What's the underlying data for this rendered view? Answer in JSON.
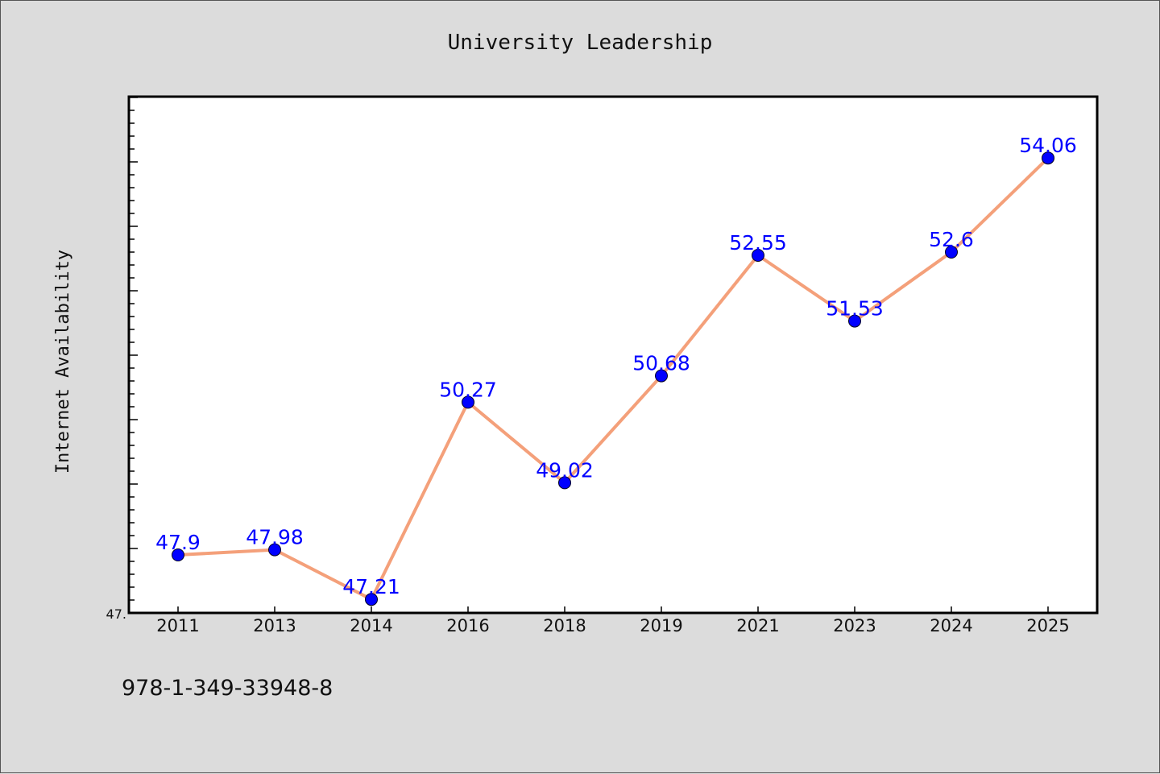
{
  "chart_data": {
    "type": "line",
    "title": "University Leadership",
    "xlabel": "",
    "ylabel": "Internet Availability",
    "categories": [
      "2011",
      "2013",
      "2014",
      "2016",
      "2018",
      "2019",
      "2021",
      "2023",
      "2024",
      "2025"
    ],
    "series": [
      {
        "values": [
          47.9,
          47.98,
          47.21,
          50.27,
          49.02,
          50.68,
          52.55,
          51.53,
          52.6,
          54.06
        ],
        "data_labels": [
          "47.9",
          "47.98",
          "47.21",
          "50.27",
          "49.02",
          "50.68",
          "52.55",
          "51.53",
          "52.6",
          "54.06"
        ]
      }
    ],
    "y_tick_labels": [
      "47."
    ],
    "ylim": [
      47.0,
      55.0
    ],
    "grid": false,
    "colors": {
      "line": "#f4a07a",
      "marker": "#0000ff",
      "label": "#0000ff",
      "plot_background": "#ffffff",
      "page_background": "#dcdcdc"
    }
  },
  "footnote": "978-1-349-33948-8"
}
